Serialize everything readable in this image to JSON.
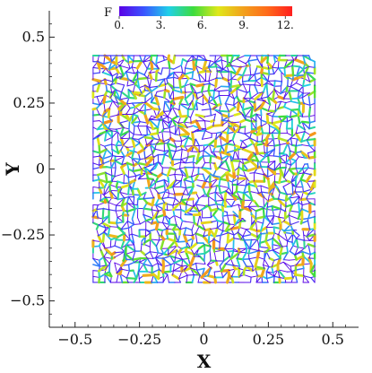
{
  "chart_data": {
    "type": "network",
    "xlabel": "X",
    "ylabel": "Y",
    "xlim": [
      -0.6,
      0.6
    ],
    "ylim": [
      -0.6,
      0.6
    ],
    "domain": {
      "x": [
        -0.43,
        0.43
      ],
      "y": [
        -0.43,
        0.43
      ]
    },
    "xticks": [
      {
        "value": -0.5,
        "label": "−0.5"
      },
      {
        "value": -0.25,
        "label": "−0.25"
      },
      {
        "value": 0,
        "label": "0"
      },
      {
        "value": 0.25,
        "label": "0.25"
      },
      {
        "value": 0.5,
        "label": "0.5"
      }
    ],
    "yticks": [
      {
        "value": 0.5,
        "label": "0.5"
      },
      {
        "value": 0.25,
        "label": "0.25"
      },
      {
        "value": 0,
        "label": "0"
      },
      {
        "value": -0.25,
        "label": "−0.25"
      },
      {
        "value": -0.5,
        "label": "−0.5"
      }
    ],
    "colorbar": {
      "title": "F",
      "min": 0,
      "max": 12.5,
      "ticks": [
        {
          "value": 0,
          "label": "0."
        },
        {
          "value": 3,
          "label": "3."
        },
        {
          "value": 6,
          "label": "6."
        },
        {
          "value": 9,
          "label": "9."
        },
        {
          "value": 12,
          "label": "12."
        }
      ],
      "colors": [
        "#5a00e6",
        "#3a55ff",
        "#1fd0e8",
        "#3ddc3d",
        "#dfe81a",
        "#f2a21c",
        "#ff6a1a",
        "#ff1e1e"
      ]
    },
    "grid": false,
    "legend": "none",
    "network": {
      "cell_rows": 38,
      "cell_cols": 38,
      "jitter": 0.42,
      "seed": 7
    }
  }
}
